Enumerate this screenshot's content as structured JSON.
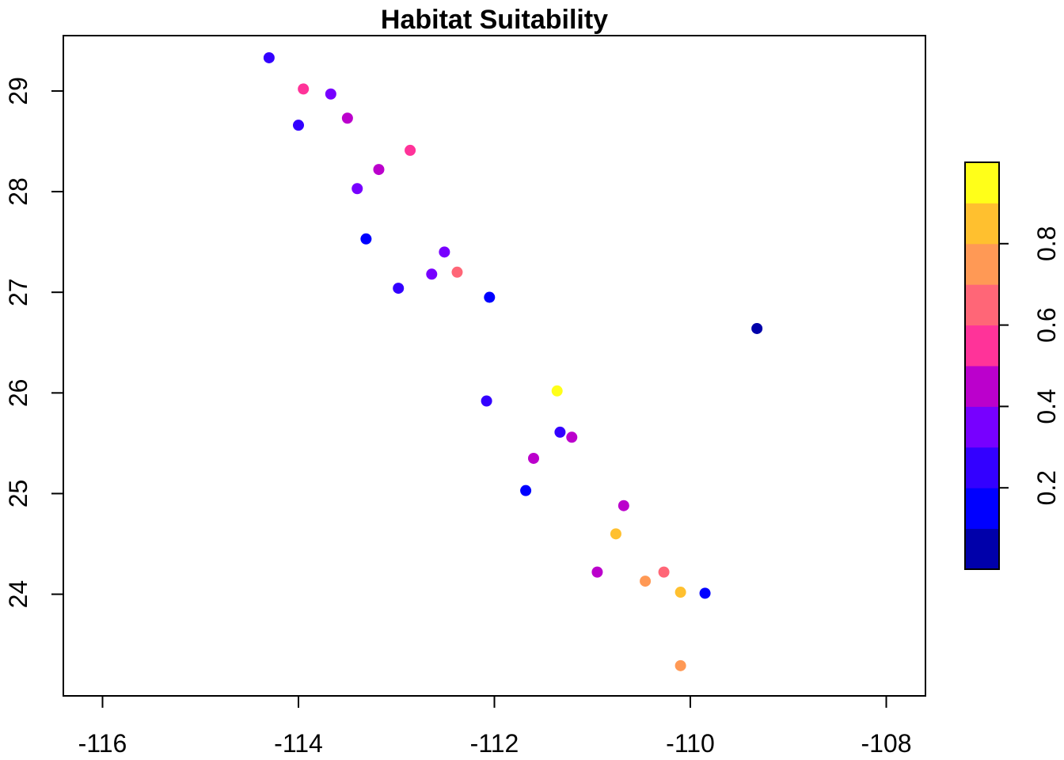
{
  "chart_data": {
    "type": "scatter",
    "title": "Habitat Suitability",
    "xlabel": "",
    "ylabel": "",
    "xlim": [
      -116.4,
      -107.6
    ],
    "ylim": [
      22.99,
      29.55
    ],
    "x_ticks": [
      -116,
      -114,
      -112,
      -110,
      -108
    ],
    "x_tick_labels": [
      "-116",
      "-114",
      "-112",
      "-110",
      "-108"
    ],
    "y_ticks": [
      24,
      25,
      26,
      27,
      28,
      29
    ],
    "y_tick_labels": [
      "24",
      "25",
      "26",
      "27",
      "28",
      "29"
    ],
    "grid": false,
    "legend": {
      "type": "colorbar",
      "placement": "right",
      "range": [
        0.0,
        1.0
      ],
      "ticks": [
        0.2,
        0.4,
        0.6,
        0.8
      ],
      "tick_labels": [
        "0.2",
        "0.4",
        "0.6",
        "0.8"
      ],
      "colors": [
        "#0000aa",
        "#0000ff",
        "#3300ff",
        "#7700ff",
        "#bb00cc",
        "#ff3399",
        "#ff6677",
        "#ff9955",
        "#ffc02f",
        "#ffff19"
      ]
    },
    "points": [
      {
        "x": -114.3,
        "y": 29.33,
        "value": 0.25
      },
      {
        "x": -113.95,
        "y": 29.02,
        "value": 0.55
      },
      {
        "x": -113.67,
        "y": 28.97,
        "value": 0.35
      },
      {
        "x": -114.0,
        "y": 28.66,
        "value": 0.25
      },
      {
        "x": -113.5,
        "y": 28.73,
        "value": 0.45
      },
      {
        "x": -112.86,
        "y": 28.41,
        "value": 0.55
      },
      {
        "x": -113.18,
        "y": 28.22,
        "value": 0.45
      },
      {
        "x": -113.4,
        "y": 28.03,
        "value": 0.35
      },
      {
        "x": -113.31,
        "y": 27.53,
        "value": 0.15
      },
      {
        "x": -112.51,
        "y": 27.4,
        "value": 0.35
      },
      {
        "x": -112.64,
        "y": 27.18,
        "value": 0.35
      },
      {
        "x": -112.38,
        "y": 27.2,
        "value": 0.65
      },
      {
        "x": -112.98,
        "y": 27.04,
        "value": 0.25
      },
      {
        "x": -112.05,
        "y": 26.95,
        "value": 0.15
      },
      {
        "x": -109.32,
        "y": 26.64,
        "value": 0.05
      },
      {
        "x": -111.36,
        "y": 26.02,
        "value": 0.95
      },
      {
        "x": -112.08,
        "y": 25.92,
        "value": 0.25
      },
      {
        "x": -111.33,
        "y": 25.61,
        "value": 0.25
      },
      {
        "x": -111.21,
        "y": 25.56,
        "value": 0.45
      },
      {
        "x": -111.6,
        "y": 25.35,
        "value": 0.45
      },
      {
        "x": -111.68,
        "y": 25.03,
        "value": 0.15
      },
      {
        "x": -110.68,
        "y": 24.88,
        "value": 0.45
      },
      {
        "x": -110.76,
        "y": 24.6,
        "value": 0.85
      },
      {
        "x": -110.95,
        "y": 24.22,
        "value": 0.45
      },
      {
        "x": -110.27,
        "y": 24.22,
        "value": 0.65
      },
      {
        "x": -110.46,
        "y": 24.13,
        "value": 0.75
      },
      {
        "x": -110.1,
        "y": 24.02,
        "value": 0.85
      },
      {
        "x": -109.85,
        "y": 24.01,
        "value": 0.15
      },
      {
        "x": -110.1,
        "y": 23.29,
        "value": 0.75
      }
    ]
  }
}
